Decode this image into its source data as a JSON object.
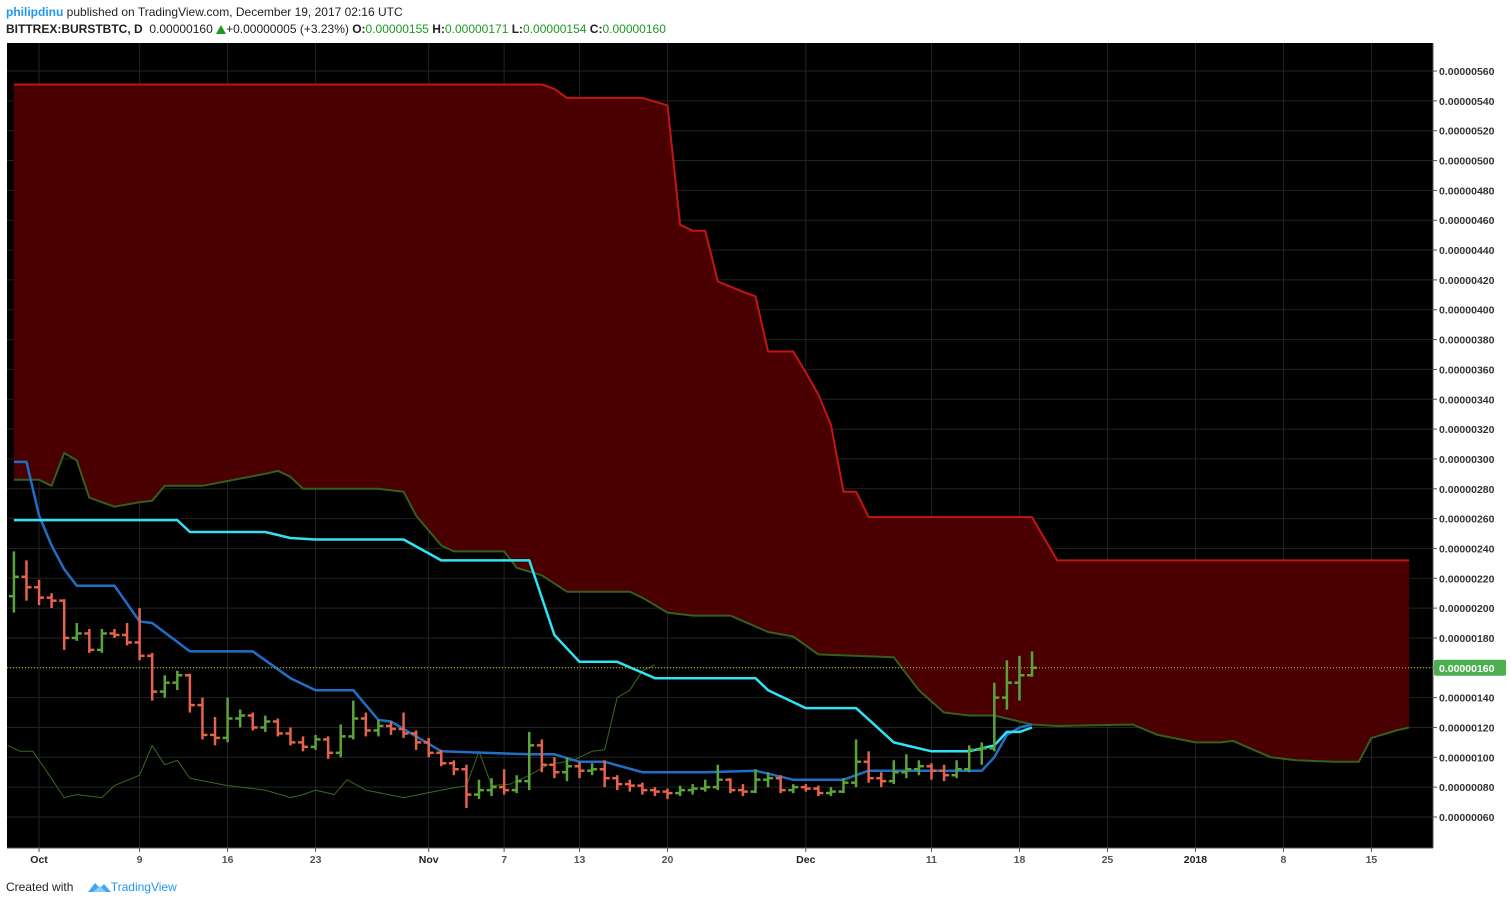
{
  "header": {
    "author": "philipdinu",
    "published": "published on TradingView.com, December 19, 2017 02:16 UTC",
    "symbol": "BITTREX:BURSTBTC, D",
    "price": "0.00000160",
    "change": "+0.00000005 (+3.23%)",
    "ohlc": [
      {
        "label": "O:",
        "value": "0.00000155"
      },
      {
        "label": "H:",
        "value": "0.00000171"
      },
      {
        "label": "L:",
        "value": "0.00000154"
      },
      {
        "label": "C:",
        "value": "0.00000160"
      }
    ]
  },
  "footer": {
    "created": "Created with",
    "brand": "TradingView"
  },
  "chart_data": {
    "type": "ohlc",
    "up_color": "#5ba33b",
    "down_color": "#e5624d",
    "grid": true,
    "xlim": [
      -2.55,
      110.9
    ],
    "ylim": [
      3.92e-07,
      5.788e-06
    ],
    "xticks": [
      {
        "value": 0,
        "label": "Oct"
      },
      {
        "value": 8,
        "label": "9"
      },
      {
        "value": 15,
        "label": "16"
      },
      {
        "value": 22,
        "label": "23"
      },
      {
        "value": 31,
        "label": "Nov"
      },
      {
        "value": 37,
        "label": "7"
      },
      {
        "value": 43,
        "label": "13"
      },
      {
        "value": 50,
        "label": "20"
      },
      {
        "value": 61,
        "label": "Dec"
      },
      {
        "value": 71,
        "label": "11"
      },
      {
        "value": 78,
        "label": "18"
      },
      {
        "value": 85,
        "label": "25"
      },
      {
        "value": 92,
        "label": "2018"
      },
      {
        "value": 99,
        "label": "8"
      },
      {
        "value": 106,
        "label": "15"
      }
    ],
    "yticks": [
      {
        "value": 6e-07,
        "label": "0.00000060"
      },
      {
        "value": 8e-07,
        "label": "0.00000080"
      },
      {
        "value": 1e-06,
        "label": "0.00000100"
      },
      {
        "value": 1.2e-06,
        "label": "0.00000120"
      },
      {
        "value": 1.4e-06,
        "label": "0.00000140"
      },
      {
        "value": 1.6e-06,
        "label": "0.00000160"
      },
      {
        "value": 1.8e-06,
        "label": "0.00000180"
      },
      {
        "value": 2e-06,
        "label": "0.00000200"
      },
      {
        "value": 2.2e-06,
        "label": "0.00000220"
      },
      {
        "value": 2.4e-06,
        "label": "0.00000240"
      },
      {
        "value": 2.6e-06,
        "label": "0.00000260"
      },
      {
        "value": 2.8e-06,
        "label": "0.00000280"
      },
      {
        "value": 3e-06,
        "label": "0.00000300"
      },
      {
        "value": 3.2e-06,
        "label": "0.00000320"
      },
      {
        "value": 3.4e-06,
        "label": "0.00000340"
      },
      {
        "value": 3.6e-06,
        "label": "0.00000360"
      },
      {
        "value": 3.8e-06,
        "label": "0.00000380"
      },
      {
        "value": 4e-06,
        "label": "0.00000400"
      },
      {
        "value": 4.2e-06,
        "label": "0.00000420"
      },
      {
        "value": 4.4e-06,
        "label": "0.00000440"
      },
      {
        "value": 4.6e-06,
        "label": "0.00000460"
      },
      {
        "value": 4.8e-06,
        "label": "0.00000480"
      },
      {
        "value": 5e-06,
        "label": "0.00000500"
      },
      {
        "value": 5.2e-06,
        "label": "0.00000520"
      },
      {
        "value": 5.4e-06,
        "label": "0.00000540"
      },
      {
        "value": 5.6e-06,
        "label": "0.00000560"
      }
    ],
    "last_price": {
      "value": 1.6e-06,
      "label": "0.00000160",
      "color": "#4caf50",
      "line_color": "#c8c800"
    },
    "x": [
      -2,
      -1,
      0,
      1,
      2,
      3,
      4,
      5,
      6,
      7,
      8,
      9,
      10,
      11,
      12,
      13,
      14,
      15,
      16,
      17,
      18,
      19,
      20,
      21,
      22,
      23,
      24,
      25,
      26,
      27,
      28,
      29,
      30,
      31,
      32,
      33,
      34,
      35,
      36,
      37,
      38,
      39,
      40,
      41,
      42,
      43,
      44,
      45,
      46,
      47,
      48,
      49,
      50,
      51,
      52,
      53,
      54,
      55,
      56,
      57,
      58,
      59,
      60,
      61,
      62,
      63,
      64,
      65,
      66,
      67,
      68,
      69,
      70,
      71,
      72,
      73,
      74,
      75,
      76,
      77,
      78,
      79
    ],
    "open": [
      2.08e-06,
      2.21e-06,
      2.14e-06,
      2.07e-06,
      2.05e-06,
      1.8e-06,
      1.83e-06,
      1.72e-06,
      1.83e-06,
      1.82e-06,
      1.77e-06,
      1.68e-06,
      1.44e-06,
      1.5e-06,
      1.55e-06,
      1.35e-06,
      1.15e-06,
      1.13e-06,
      1.26e-06,
      1.28e-06,
      1.2e-06,
      1.24e-06,
      1.16e-06,
      1.1e-06,
      1.07e-06,
      1.12e-06,
      1.03e-06,
      1.14e-06,
      1.26e-06,
      1.18e-06,
      1.21e-06,
      1.19e-06,
      1.16e-06,
      1.1e-06,
      1.03e-06,
      9.6e-07,
      9.2e-07,
      7.5e-07,
      7.8e-07,
      8e-07,
      7.8e-07,
      8.4e-07,
      1.08e-06,
      9.5e-07,
      9e-07,
      9.4e-07,
      9.1e-07,
      9.2e-07,
      8.6e-07,
      8.2e-07,
      8.1e-07,
      7.8e-07,
      7.7e-07,
      7.6e-07,
      7.8e-07,
      7.9e-07,
      8e-07,
      8.5e-07,
      7.8e-07,
      7.7e-07,
      8.5e-07,
      8.6e-07,
      7.8e-07,
      8e-07,
      7.9e-07,
      7.6e-07,
      7.7e-07,
      8.3e-07,
      9.7e-07,
      8.6e-07,
      8.4e-07,
      9e-07,
      9.2e-07,
      9.4e-07,
      9.1e-07,
      8.8e-07,
      9.2e-07,
      1.05e-06,
      1.06e-06,
      1.4e-06,
      1.5e-06,
      1.55e-06
    ],
    "high": [
      2.38e-06,
      2.32e-06,
      2.19e-06,
      2.1e-06,
      2.06e-06,
      1.9e-06,
      1.86e-06,
      1.86e-06,
      1.86e-06,
      1.9e-06,
      2e-06,
      1.7e-06,
      1.55e-06,
      1.58e-06,
      1.56e-06,
      1.4e-06,
      1.27e-06,
      1.4e-06,
      1.32e-06,
      1.3e-06,
      1.28e-06,
      1.26e-06,
      1.2e-06,
      1.14e-06,
      1.15e-06,
      1.14e-06,
      1.22e-06,
      1.38e-06,
      1.3e-06,
      1.25e-06,
      1.24e-06,
      1.3e-06,
      1.18e-06,
      1.13e-06,
      1.05e-06,
      9.8e-07,
      9.5e-07,
      8.5e-07,
      8.6e-07,
      9.2e-07,
      8.8e-07,
      1.17e-06,
      1.12e-06,
      1e-06,
      1e-06,
      9.7e-07,
      9.6e-07,
      9.8e-07,
      8.8e-07,
      8.5e-07,
      8.3e-07,
      8e-07,
      7.9e-07,
      8.1e-07,
      8.2e-07,
      8.5e-07,
      9.5e-07,
      8.6e-07,
      8.2e-07,
      9.2e-07,
      9e-07,
      8.8e-07,
      8.2e-07,
      8.2e-07,
      8.1e-07,
      8e-07,
      8.6e-07,
      1.12e-06,
      1.04e-06,
      9e-07,
      9.8e-07,
      1.02e-06,
      9.8e-07,
      9.6e-07,
      9.5e-07,
      9.8e-07,
      1.08e-06,
      1.1e-06,
      1.5e-06,
      1.65e-06,
      1.68e-06,
      1.71e-06
    ],
    "low": [
      1.97e-06,
      2.05e-06,
      2.02e-06,
      2e-06,
      1.72e-06,
      1.78e-06,
      1.7e-06,
      1.7e-06,
      1.8e-06,
      1.75e-06,
      1.65e-06,
      1.38e-06,
      1.4e-06,
      1.45e-06,
      1.3e-06,
      1.12e-06,
      1.08e-06,
      1.1e-06,
      1.2e-06,
      1.18e-06,
      1.17e-06,
      1.14e-06,
      1.08e-06,
      1.04e-06,
      1.05e-06,
      9.9e-07,
      1e-06,
      1.12e-06,
      1.14e-06,
      1.14e-06,
      1.15e-06,
      1.13e-06,
      1.05e-06,
      1e-06,
      9.4e-07,
      8.8e-07,
      6.6e-07,
      7.2e-07,
      7.4e-07,
      7.5e-07,
      7.6e-07,
      7.8e-07,
      9e-07,
      8.6e-07,
      8.4e-07,
      8.6e-07,
      8.8e-07,
      8e-07,
      7.8e-07,
      7.7e-07,
      7.5e-07,
      7.4e-07,
      7.2e-07,
      7.4e-07,
      7.5e-07,
      7.7e-07,
      7.8e-07,
      7.6e-07,
      7.4e-07,
      7.6e-07,
      8e-07,
      7.6e-07,
      7.6e-07,
      7.7e-07,
      7.4e-07,
      7.4e-07,
      7.6e-07,
      8e-07,
      8.3e-07,
      8e-07,
      8.2e-07,
      8.6e-07,
      8.8e-07,
      8.5e-07,
      8.4e-07,
      8.6e-07,
      9e-07,
      9.5e-07,
      1.04e-06,
      1.32e-06,
      1.38e-06,
      1.54e-06
    ],
    "close": [
      2.21e-06,
      2.14e-06,
      2.07e-06,
      2.05e-06,
      1.8e-06,
      1.83e-06,
      1.72e-06,
      1.83e-06,
      1.82e-06,
      1.77e-06,
      1.68e-06,
      1.44e-06,
      1.5e-06,
      1.55e-06,
      1.35e-06,
      1.15e-06,
      1.13e-06,
      1.26e-06,
      1.28e-06,
      1.2e-06,
      1.24e-06,
      1.16e-06,
      1.1e-06,
      1.07e-06,
      1.12e-06,
      1.03e-06,
      1.14e-06,
      1.26e-06,
      1.18e-06,
      1.21e-06,
      1.19e-06,
      1.16e-06,
      1.1e-06,
      1.03e-06,
      9.6e-07,
      9.2e-07,
      7.5e-07,
      7.8e-07,
      8e-07,
      7.8e-07,
      8.4e-07,
      1.08e-06,
      9.5e-07,
      9e-07,
      9.4e-07,
      9.1e-07,
      9.2e-07,
      8.6e-07,
      8.2e-07,
      8.1e-07,
      7.8e-07,
      7.7e-07,
      7.6e-07,
      7.8e-07,
      7.9e-07,
      8e-07,
      8.5e-07,
      7.8e-07,
      7.7e-07,
      8.5e-07,
      8.6e-07,
      7.8e-07,
      8e-07,
      7.9e-07,
      7.6e-07,
      7.7e-07,
      8.3e-07,
      9.7e-07,
      8.6e-07,
      8.4e-07,
      9e-07,
      9.2e-07,
      9.4e-07,
      9.1e-07,
      8.8e-07,
      9.2e-07,
      1.05e-06,
      1.06e-06,
      1.4e-06,
      1.5e-06,
      1.55e-06,
      1.6e-06
    ],
    "cloud": {
      "color": "#4a0000",
      "upper": {
        "color": "#c41414",
        "x": [
          -2,
          40,
          41,
          42,
          48,
          50,
          51,
          52,
          53,
          54,
          56,
          57,
          58,
          60,
          61,
          62,
          63,
          64,
          65,
          66,
          79,
          81,
          109
        ],
        "values": [
          5.51e-06,
          5.51e-06,
          5.48e-06,
          5.42e-06,
          5.42e-06,
          5.37e-06,
          4.57e-06,
          4.53e-06,
          4.53e-06,
          4.19e-06,
          4.12e-06,
          4.09e-06,
          3.72e-06,
          3.72e-06,
          3.58e-06,
          3.43e-06,
          3.23e-06,
          2.78e-06,
          2.78e-06,
          2.61e-06,
          2.61e-06,
          2.32e-06,
          2.32e-06
        ]
      },
      "lower": {
        "color": "#33601c",
        "x": [
          -2,
          0,
          1,
          2,
          3,
          4,
          6,
          8,
          9,
          10,
          13,
          18,
          19,
          20,
          21,
          27,
          29,
          30,
          32,
          33,
          37,
          38,
          40,
          42,
          47,
          48,
          50,
          52,
          55,
          58,
          60,
          62,
          68,
          70,
          72,
          74,
          76,
          79,
          81,
          87,
          89,
          92,
          94,
          95,
          98,
          100,
          103,
          105,
          106,
          108,
          109
        ],
        "values": [
          2.86e-06,
          2.86e-06,
          2.82e-06,
          3.04e-06,
          2.99e-06,
          2.74e-06,
          2.68e-06,
          2.71e-06,
          2.72e-06,
          2.82e-06,
          2.82e-06,
          2.9e-06,
          2.92e-06,
          2.88e-06,
          2.8e-06,
          2.8e-06,
          2.78e-06,
          2.62e-06,
          2.42e-06,
          2.38e-06,
          2.38e-06,
          2.27e-06,
          2.22e-06,
          2.11e-06,
          2.11e-06,
          2.07e-06,
          1.97e-06,
          1.95e-06,
          1.95e-06,
          1.84e-06,
          1.81e-06,
          1.69e-06,
          1.67e-06,
          1.45e-06,
          1.3e-06,
          1.28e-06,
          1.28e-06,
          1.22e-06,
          1.21e-06,
          1.22e-06,
          1.15e-06,
          1.1e-06,
          1.1e-06,
          1.11e-06,
          1e-06,
          9.8e-07,
          9.7e-07,
          9.7e-07,
          1.13e-06,
          1.18e-06,
          1.2e-06
        ]
      }
    },
    "lines": [
      {
        "color": "#3a6a1e",
        "width": 1,
        "x": [
          -2.5,
          -1.5,
          -0.5,
          0.5,
          2,
          3,
          5,
          6,
          8,
          9,
          10,
          11,
          12,
          15,
          18,
          20,
          21,
          22,
          23.5,
          24.5,
          26,
          29,
          32,
          34,
          35,
          36,
          37.5,
          39,
          40.5,
          42.5,
          44,
          45,
          46,
          47,
          48,
          49
        ],
        "values": [
          1.08e-06,
          1.04e-06,
          1.04e-06,
          9.2e-07,
          7.3e-07,
          7.5e-07,
          7.3e-07,
          8.1e-07,
          8.8e-07,
          1.08e-06,
          9.5e-07,
          9.8e-07,
          8.6e-07,
          8.1e-07,
          7.8e-07,
          7.3e-07,
          7.5e-07,
          7.8e-07,
          7.5e-07,
          8.5e-07,
          7.8e-07,
          7.3e-07,
          7.8e-07,
          8.1e-07,
          1.04e-06,
          8.1e-07,
          8.2e-07,
          8.8e-07,
          9.5e-07,
          9.8e-07,
          1.04e-06,
          1.05e-06,
          1.4e-06,
          1.45e-06,
          1.58e-06,
          1.62e-06
        ]
      },
      {
        "color": "#1f6fc4",
        "width": 2.5,
        "x": [
          -2,
          -1,
          0,
          1,
          2,
          3,
          6,
          8,
          9,
          12,
          17,
          18,
          20,
          22,
          25,
          27,
          28,
          32,
          39,
          41,
          43,
          45,
          48,
          53,
          57,
          60,
          64,
          66,
          75,
          76,
          77,
          78,
          79
        ],
        "values": [
          2.98e-06,
          2.98e-06,
          2.62e-06,
          2.42e-06,
          2.26e-06,
          2.15e-06,
          2.15e-06,
          1.91e-06,
          1.9e-06,
          1.71e-06,
          1.71e-06,
          1.65e-06,
          1.53e-06,
          1.45e-06,
          1.45e-06,
          1.25e-06,
          1.24e-06,
          1.04e-06,
          1.02e-06,
          1.02e-06,
          9.7e-07,
          9.7e-07,
          9e-07,
          9e-07,
          9.1e-07,
          8.5e-07,
          8.5e-07,
          9.1e-07,
          9.1e-07,
          1e-06,
          1.15e-06,
          1.2e-06,
          1.22e-06
        ]
      },
      {
        "color": "#2fe3f2",
        "width": 2.5,
        "x": [
          -2,
          11,
          12,
          18,
          20,
          22,
          29,
          32,
          39,
          41,
          43,
          46,
          49,
          57,
          58,
          61,
          65,
          68,
          69,
          71,
          74,
          76,
          77,
          78,
          79
        ],
        "values": [
          2.59e-06,
          2.59e-06,
          2.51e-06,
          2.51e-06,
          2.47e-06,
          2.46e-06,
          2.46e-06,
          2.32e-06,
          2.32e-06,
          1.82e-06,
          1.64e-06,
          1.64e-06,
          1.53e-06,
          1.53e-06,
          1.45e-06,
          1.33e-06,
          1.33e-06,
          1.1e-06,
          1.08e-06,
          1.04e-06,
          1.04e-06,
          1.08e-06,
          1.17e-06,
          1.17e-06,
          1.2e-06
        ]
      }
    ]
  }
}
